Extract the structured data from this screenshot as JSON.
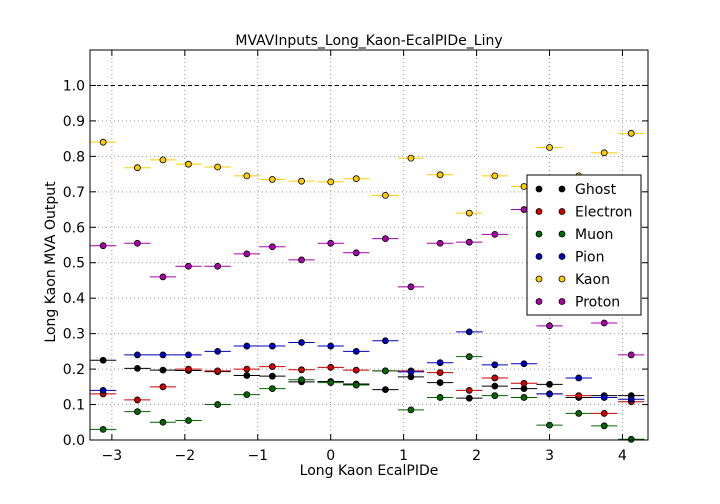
{
  "chart_data": {
    "type": "scatter",
    "title": "MVAVInputs_Long_Kaon-EcalPIDe_Liny",
    "xlabel": "Long Kaon EcalPIDe",
    "ylabel": "Long Kaon MVA Output",
    "xlim": [
      -3.3,
      4.35
    ],
    "ylim": [
      0.0,
      1.1
    ],
    "xticks": [
      -3,
      -2,
      -1,
      0,
      1,
      2,
      3,
      4
    ],
    "yticks": [
      0.0,
      0.1,
      0.2,
      0.3,
      0.4,
      0.5,
      0.6,
      0.7,
      0.8,
      0.9,
      1.0
    ],
    "xtick_labels": [
      "−3",
      "−2",
      "−1",
      "0",
      "1",
      "2",
      "3",
      "4"
    ],
    "ytick_labels": [
      "0.0",
      "0.1",
      "0.2",
      "0.3",
      "0.4",
      "0.5",
      "0.6",
      "0.7",
      "0.8",
      "0.9",
      "1.0"
    ],
    "reference_line": 1.0,
    "grid": true,
    "legend_position": "right",
    "bin_half_width": 0.18,
    "x": [
      -3.12,
      -2.65,
      -2.3,
      -1.95,
      -1.55,
      -1.15,
      -0.8,
      -0.4,
      0,
      0.35,
      0.75,
      1.1,
      1.5,
      1.9,
      2.25,
      2.65,
      3.0,
      3.4,
      3.75,
      4.12
    ],
    "series": [
      {
        "name": "Ghost",
        "color": "#000000",
        "values": [
          0.225,
          0.202,
          0.197,
          0.196,
          0.193,
          0.182,
          0.18,
          0.164,
          0.165,
          0.158,
          0.142,
          0.178,
          0.162,
          0.118,
          0.152,
          0.145,
          0.157,
          0.12,
          0.125,
          0.125
        ]
      },
      {
        "name": "Electron",
        "color": "#cc0000",
        "values": [
          0.13,
          0.113,
          0.15,
          0.2,
          0.195,
          0.2,
          0.207,
          0.198,
          0.205,
          0.197,
          0.195,
          0.195,
          0.19,
          0.14,
          0.175,
          0.16,
          0.13,
          0.125,
          0.075,
          0.108
        ]
      },
      {
        "name": "Muon",
        "color": "#006600",
        "values": [
          0.03,
          0.08,
          0.05,
          0.055,
          0.1,
          0.128,
          0.145,
          0.17,
          0.162,
          0.155,
          0.195,
          0.085,
          0.12,
          0.235,
          0.125,
          0.12,
          0.042,
          0.075,
          0.04,
          0.002
        ]
      },
      {
        "name": "Pion",
        "color": "#0000bb",
        "values": [
          0.14,
          0.24,
          0.24,
          0.24,
          0.25,
          0.265,
          0.265,
          0.275,
          0.265,
          0.25,
          0.28,
          0.192,
          0.218,
          0.305,
          0.212,
          0.215,
          0.13,
          0.175,
          0.12,
          0.115
        ]
      },
      {
        "name": "Kaon",
        "color": "#ffcc00",
        "values": [
          0.84,
          0.768,
          0.79,
          0.778,
          0.77,
          0.745,
          0.735,
          0.73,
          0.728,
          0.737,
          0.69,
          0.795,
          0.748,
          0.64,
          0.745,
          0.715,
          0.825,
          0.745,
          0.81,
          0.865
        ]
      },
      {
        "name": "Proton",
        "color": "#aa00aa",
        "values": [
          0.548,
          0.555,
          0.46,
          0.49,
          0.49,
          0.525,
          0.545,
          0.508,
          0.555,
          0.528,
          0.568,
          0.432,
          0.555,
          0.558,
          0.58,
          0.65,
          0.322,
          0.66,
          0.33,
          0.24
        ]
      }
    ]
  }
}
